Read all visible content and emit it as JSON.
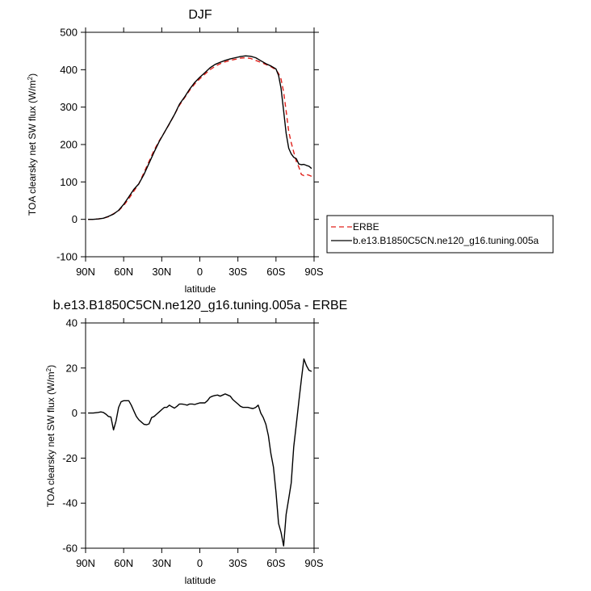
{
  "chart_data": [
    {
      "type": "line",
      "title": "DJF",
      "xlabel": "latitude",
      "ylabel": "TOA clearsky net SW flux (W/m",
      "ylabel_sup": "2",
      "ylabel_tail": ")",
      "xlim": [
        90,
        -90
      ],
      "ylim": [
        -100,
        500
      ],
      "x_ticks": [
        90,
        60,
        30,
        0,
        -30,
        -60,
        -90
      ],
      "x_tick_labels": [
        "90N",
        "60N",
        "30N",
        "0",
        "30S",
        "60S",
        "90S"
      ],
      "y_ticks": [
        -100,
        0,
        100,
        200,
        300,
        400,
        500
      ],
      "y_tick_labels": [
        "-100",
        "0",
        "100",
        "200",
        "300",
        "400",
        "500"
      ],
      "grid": false,
      "legend_position": "outside-right",
      "series": [
        {
          "name": "ERBE",
          "color": "#e0201a",
          "dash": "6,4",
          "x": [
            88,
            84,
            80,
            76,
            72,
            68,
            64,
            60,
            56,
            52,
            48,
            44,
            40,
            36,
            32,
            28,
            24,
            20,
            16,
            12,
            8,
            4,
            0,
            -4,
            -8,
            -12,
            -16,
            -20,
            -24,
            -28,
            -32,
            -36,
            -40,
            -44,
            -48,
            -52,
            -56,
            -60,
            -62,
            -64,
            -66,
            -68,
            -70,
            -72,
            -74,
            -76,
            -78,
            -80,
            -82,
            -84,
            -86,
            -88
          ],
          "values": [
            0,
            0,
            1,
            3,
            7,
            15,
            23,
            37,
            55,
            75,
            95,
            125,
            155,
            185,
            210,
            232,
            255,
            280,
            305,
            325,
            345,
            362,
            376,
            388,
            400,
            409,
            416,
            421,
            425,
            428,
            431,
            432,
            430,
            425,
            420,
            414,
            408,
            400,
            390,
            375,
            340,
            290,
            235,
            205,
            180,
            155,
            140,
            120,
            117,
            120,
            118,
            115
          ]
        },
        {
          "name": "b.e13.B1850C5CN.ne120_g16.tuning.005a",
          "color": "#000000",
          "dash": "",
          "x": [
            88,
            84,
            80,
            76,
            72,
            68,
            64,
            60,
            56,
            52,
            48,
            44,
            40,
            36,
            32,
            28,
            24,
            20,
            16,
            12,
            8,
            4,
            0,
            -4,
            -8,
            -12,
            -16,
            -20,
            -24,
            -28,
            -32,
            -36,
            -40,
            -44,
            -48,
            -52,
            -56,
            -60,
            -62,
            -64,
            -66,
            -68,
            -70,
            -72,
            -74,
            -76,
            -78,
            -80,
            -82,
            -84,
            -86,
            -88
          ],
          "values": [
            0,
            0,
            1,
            3,
            8,
            14,
            24,
            40,
            60,
            80,
            95,
            120,
            150,
            180,
            208,
            232,
            256,
            280,
            308,
            327,
            348,
            366,
            380,
            392,
            405,
            414,
            420,
            425,
            429,
            432,
            435,
            437,
            436,
            432,
            424,
            416,
            410,
            402,
            385,
            350,
            290,
            230,
            190,
            175,
            166,
            162,
            148,
            146,
            147,
            144,
            142,
            136
          ]
        }
      ]
    },
    {
      "type": "line",
      "title": "b.e13.B1850C5CN.ne120_g16.tuning.005a - ERBE",
      "xlabel": "latitude",
      "ylabel": "TOA clearsky net SW flux (W/m",
      "ylabel_sup": "2",
      "ylabel_tail": ")",
      "xlim": [
        90,
        -90
      ],
      "ylim": [
        -60,
        40
      ],
      "x_ticks": [
        90,
        60,
        30,
        0,
        -30,
        -60,
        -90
      ],
      "x_tick_labels": [
        "90N",
        "60N",
        "30N",
        "0",
        "30S",
        "60S",
        "90S"
      ],
      "y_ticks": [
        -60,
        -40,
        -20,
        0,
        20,
        40
      ],
      "y_tick_labels": [
        "-60",
        "-40",
        "-20",
        "0",
        "20",
        "40"
      ],
      "grid": false,
      "series": [
        {
          "color": "#000000",
          "x": [
            88,
            84,
            80,
            78,
            76,
            74,
            72,
            70,
            68,
            66,
            64,
            62,
            60,
            58,
            56,
            54,
            52,
            50,
            48,
            46,
            44,
            42,
            40,
            38,
            36,
            34,
            32,
            30,
            28,
            26,
            24,
            22,
            20,
            18,
            16,
            14,
            12,
            10,
            8,
            6,
            4,
            2,
            0,
            -2,
            -4,
            -6,
            -8,
            -10,
            -12,
            -14,
            -16,
            -18,
            -20,
            -22,
            -24,
            -26,
            -28,
            -30,
            -32,
            -34,
            -36,
            -38,
            -40,
            -42,
            -44,
            -46,
            -48,
            -50,
            -52,
            -54,
            -56,
            -58,
            -60,
            -62,
            -64,
            -66,
            -68,
            -70,
            -72,
            -74,
            -76,
            -78,
            -80,
            -82,
            -84,
            -86,
            -88
          ],
          "values": [
            0,
            0,
            0.3,
            0.5,
            0.3,
            -0.5,
            -1.5,
            -1.8,
            -7.5,
            -3.5,
            2.5,
            5,
            5.5,
            5.5,
            5.5,
            3.5,
            1,
            -1.5,
            -3,
            -4,
            -5,
            -5.2,
            -4.8,
            -2,
            -1.5,
            -0.5,
            0.5,
            1.5,
            2.5,
            2.5,
            3.5,
            2.8,
            2.2,
            3,
            4,
            4,
            3.8,
            3.5,
            4,
            4,
            3.8,
            4.2,
            4.5,
            4.5,
            4.5,
            5.5,
            7,
            7.5,
            7.8,
            8,
            7.5,
            8,
            8.5,
            8,
            7.5,
            6,
            5,
            4,
            3,
            2.5,
            2.5,
            2.5,
            2.2,
            2,
            2.5,
            3.5,
            0,
            -2,
            -5,
            -10,
            -18,
            -24,
            -35,
            -49,
            -53,
            -59,
            -45,
            -38,
            -31,
            -15,
            -5,
            5,
            15,
            24,
            21,
            19,
            18.5
          ]
        }
      ]
    }
  ]
}
